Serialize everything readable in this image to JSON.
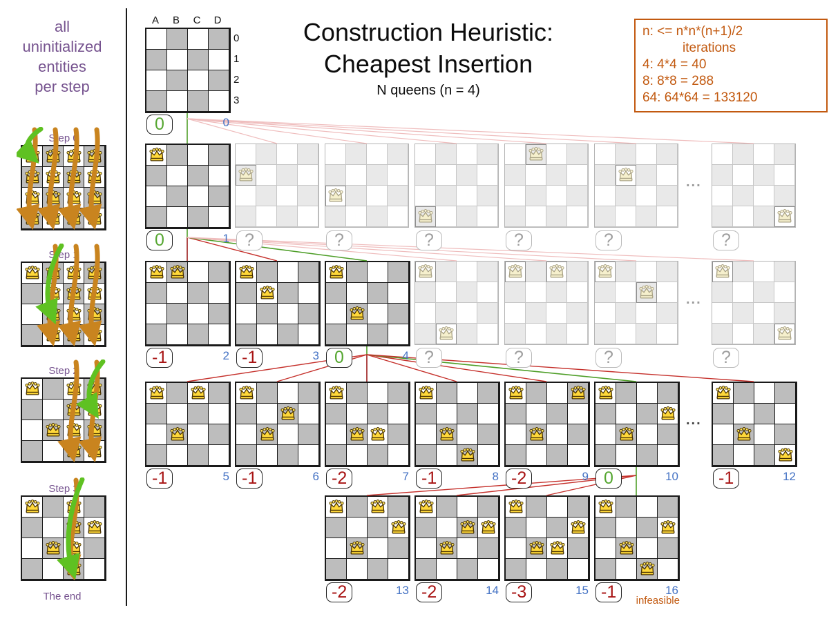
{
  "header": {
    "title_line1": "Construction Heuristic:",
    "title_line2": "Cheapest Insertion",
    "subtitle": "N queens (n = 4)"
  },
  "info_box": {
    "line1": "n: <= n*n*(n+1)/2",
    "line2": "iterations",
    "line3": "4: 4*4 = 40",
    "line4": "8: 8*8 = 288",
    "line5": "64: 64*64 = 133120"
  },
  "sidebar": {
    "caption_lines": [
      "all",
      "uninitialized",
      "entities",
      "per step"
    ],
    "footer": "The end",
    "steps": [
      {
        "label": "Step 0",
        "fixed": [],
        "searching": [
          "A",
          "B",
          "C",
          "D"
        ],
        "green_target": "A0"
      },
      {
        "label": "Step 1",
        "fixed": [
          "A0"
        ],
        "searching": [
          "B",
          "C",
          "D"
        ],
        "green_target": "B2"
      },
      {
        "label": "Step 2",
        "fixed": [
          "A0",
          "B2"
        ],
        "searching": [
          "C",
          "D"
        ],
        "green_target": "D1"
      },
      {
        "label": "Step 3",
        "fixed": [
          "A0",
          "B2",
          "D1"
        ],
        "searching": [
          "C"
        ],
        "green_target": "C3"
      }
    ]
  },
  "board_labels": {
    "columns": [
      "A",
      "B",
      "C",
      "D"
    ],
    "rows": [
      "0",
      "1",
      "2",
      "3"
    ]
  },
  "ellipsis_char": "...",
  "tree": {
    "root": {
      "queens": [],
      "score": "0",
      "index": "0"
    },
    "rows": [
      {
        "ellipsis": true,
        "boards": [
          {
            "queens": [
              "A0"
            ],
            "score": "0",
            "index": "1",
            "chosen": true
          },
          {
            "queens": [
              "A1"
            ],
            "score": "?",
            "faded": true
          },
          {
            "queens": [
              "A2"
            ],
            "score": "?",
            "faded": true
          },
          {
            "queens": [
              "A3"
            ],
            "score": "?",
            "faded": true
          },
          {
            "queens": [
              "B0"
            ],
            "score": "?",
            "faded": true
          },
          {
            "queens": [
              "B1"
            ],
            "score": "?",
            "faded": true
          },
          {
            "queens": [
              "D3"
            ],
            "score": "?",
            "faded": true
          }
        ]
      },
      {
        "ellipsis": true,
        "boards": [
          {
            "queens": [
              "A0",
              "B0"
            ],
            "score": "-1",
            "index": "2"
          },
          {
            "queens": [
              "A0",
              "B1"
            ],
            "score": "-1",
            "index": "3"
          },
          {
            "queens": [
              "A0",
              "B2"
            ],
            "score": "0",
            "index": "4",
            "chosen": true
          },
          {
            "queens": [
              "A0",
              "B3"
            ],
            "score": "?",
            "faded": true
          },
          {
            "queens": [
              "A0",
              "C0"
            ],
            "score": "?",
            "faded": true
          },
          {
            "queens": [
              "A0",
              "C1"
            ],
            "score": "?",
            "faded": true
          },
          {
            "queens": [
              "A0",
              "D3"
            ],
            "score": "?",
            "faded": true
          }
        ]
      },
      {
        "ellipsis": true,
        "boards": [
          {
            "queens": [
              "A0",
              "B2",
              "C0"
            ],
            "score": "-1",
            "index": "5"
          },
          {
            "queens": [
              "A0",
              "B2",
              "C1"
            ],
            "score": "-1",
            "index": "6"
          },
          {
            "queens": [
              "A0",
              "B2",
              "C2"
            ],
            "score": "-2",
            "index": "7"
          },
          {
            "queens": [
              "A0",
              "B2",
              "C3"
            ],
            "score": "-1",
            "index": "8"
          },
          {
            "queens": [
              "A0",
              "B2",
              "D0"
            ],
            "score": "-2",
            "index": "9"
          },
          {
            "queens": [
              "A0",
              "B2",
              "D1"
            ],
            "score": "0",
            "index": "10",
            "chosen": true
          },
          {
            "queens": [
              "A0",
              "B2",
              "D3"
            ],
            "score": "-1",
            "index": "12"
          }
        ]
      },
      {
        "ellipsis": false,
        "boards": [
          {
            "queens": [
              "A0",
              "B2",
              "D1",
              "C0"
            ],
            "score": "-2",
            "index": "13"
          },
          {
            "queens": [
              "A0",
              "B2",
              "D1",
              "C1"
            ],
            "score": "-2",
            "index": "14"
          },
          {
            "queens": [
              "A0",
              "B2",
              "D1",
              "C2"
            ],
            "score": "-3",
            "index": "15"
          },
          {
            "queens": [
              "A0",
              "B2",
              "D1",
              "C3"
            ],
            "score": "-1",
            "index": "16",
            "chosen": true,
            "note": "infeasible"
          }
        ]
      }
    ]
  },
  "colors": {
    "purple": "#76538F",
    "orange": "#C2590F",
    "score_green": "#55A630",
    "score_red": "#A81414",
    "index_blue": "#4472C4",
    "line_red": "#C5302B",
    "line_darkred": "#9B1B1B",
    "line_pink": "#EFBDBD",
    "line_green": "#4E9E28",
    "cell_gray": "#BDBDBD",
    "cell_gray_faded": "#E9E9E9",
    "queen_gold": "#FFD83A",
    "queen_faded": "#F6F0CD",
    "arrow_orange": "#C9841F",
    "arrow_green": "#5FC122"
  }
}
